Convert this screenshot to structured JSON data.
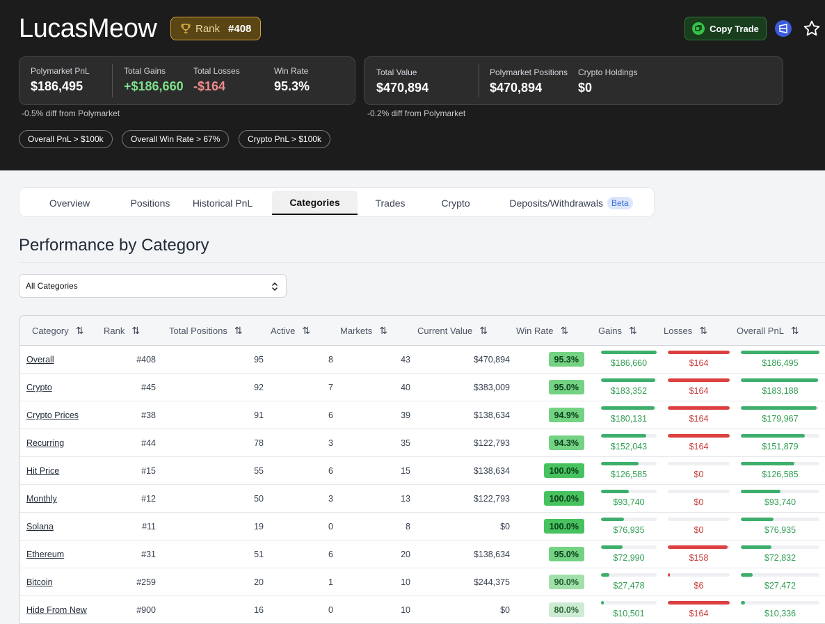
{
  "profile": {
    "username": "LucasMeow",
    "rank_label": "Rank",
    "rank_value": "#408",
    "copy_trade_label": "Copy Trade"
  },
  "card1": {
    "stats": [
      {
        "label": "Polymarket PnL",
        "value": "$186,495"
      },
      {
        "label": "Total Gains",
        "value": "+$186,660"
      },
      {
        "label": "Total Losses",
        "value": "-$164"
      },
      {
        "label": "Win Rate",
        "value": "95.3%"
      }
    ],
    "diff": "-0.5% diff from Polymarket"
  },
  "card2": {
    "stats": [
      {
        "label": "Total Value",
        "value": "$470,894"
      },
      {
        "label": "Polymarket Positions",
        "value": "$470,894"
      },
      {
        "label": "Crypto Holdings",
        "value": "$0"
      }
    ],
    "diff": "-0.2% diff from Polymarket"
  },
  "chips": [
    "Overall PnL > $100k",
    "Overall Win Rate > 67%",
    "Crypto PnL > $100k"
  ],
  "tabs": [
    {
      "label": "Overview"
    },
    {
      "label": "Positions"
    },
    {
      "label": "Historical PnL"
    },
    {
      "label": "Categories"
    },
    {
      "label": "Trades"
    },
    {
      "label": "Crypto"
    },
    {
      "label": "Deposits/Withdrawals",
      "badge": "Beta"
    }
  ],
  "section_title": "Performance by Category",
  "filter": {
    "selected": "All Categories"
  },
  "colors": {
    "gain": "#3dae6b",
    "loss": "#dc4040",
    "winrate_high": "#47c25e",
    "winrate_mid": "#74d283",
    "winrate_low": "#a2e0ab",
    "winrate_lowest": "#cdebd2"
  },
  "table": {
    "headers": [
      "Category",
      "Rank",
      "Total Positions",
      "Active",
      "Markets",
      "Current Value",
      "Win Rate",
      "Gains",
      "Losses",
      "Overall PnL"
    ],
    "rows": [
      {
        "category": "Overall",
        "rank": "#408",
        "total_positions": "95",
        "active": "8",
        "markets": "43",
        "current_value": "$470,894",
        "win_rate": "95.3%",
        "gains": "$186,660",
        "losses": "$164",
        "overall_pnl": "$186,495",
        "gains_frac": 1.0,
        "losses_frac": 1.0,
        "pnl_frac": 1.0
      },
      {
        "category": "Crypto",
        "rank": "#45",
        "total_positions": "92",
        "active": "7",
        "markets": "40",
        "current_value": "$383,009",
        "win_rate": "95.0%",
        "gains": "$183,352",
        "losses": "$164",
        "overall_pnl": "$183,188",
        "gains_frac": 0.98,
        "losses_frac": 1.0,
        "pnl_frac": 0.98
      },
      {
        "category": "Crypto Prices",
        "rank": "#38",
        "total_positions": "91",
        "active": "6",
        "markets": "39",
        "current_value": "$138,634",
        "win_rate": "94.9%",
        "gains": "$180,131",
        "losses": "$164",
        "overall_pnl": "$179,967",
        "gains_frac": 0.965,
        "losses_frac": 1.0,
        "pnl_frac": 0.965
      },
      {
        "category": "Recurring",
        "rank": "#44",
        "total_positions": "78",
        "active": "3",
        "markets": "35",
        "current_value": "$122,793",
        "win_rate": "94.3%",
        "gains": "$152,043",
        "losses": "$164",
        "overall_pnl": "$151,879",
        "gains_frac": 0.815,
        "losses_frac": 1.0,
        "pnl_frac": 0.814
      },
      {
        "category": "Hit Price",
        "rank": "#15",
        "total_positions": "55",
        "active": "6",
        "markets": "15",
        "current_value": "$138,634",
        "win_rate": "100.0%",
        "gains": "$126,585",
        "losses": "$0",
        "overall_pnl": "$126,585",
        "gains_frac": 0.678,
        "losses_frac": 0.0,
        "pnl_frac": 0.679
      },
      {
        "category": "Monthly",
        "rank": "#12",
        "total_positions": "50",
        "active": "3",
        "markets": "13",
        "current_value": "$122,793",
        "win_rate": "100.0%",
        "gains": "$93,740",
        "losses": "$0",
        "overall_pnl": "$93,740",
        "gains_frac": 0.502,
        "losses_frac": 0.0,
        "pnl_frac": 0.503
      },
      {
        "category": "Solana",
        "rank": "#11",
        "total_positions": "19",
        "active": "0",
        "markets": "8",
        "current_value": "$0",
        "win_rate": "100.0%",
        "gains": "$76,935",
        "losses": "$0",
        "overall_pnl": "$76,935",
        "gains_frac": 0.412,
        "losses_frac": 0.0,
        "pnl_frac": 0.413
      },
      {
        "category": "Ethereum",
        "rank": "#31",
        "total_positions": "51",
        "active": "6",
        "markets": "20",
        "current_value": "$138,634",
        "win_rate": "95.0%",
        "gains": "$72,990",
        "losses": "$158",
        "overall_pnl": "$72,832",
        "gains_frac": 0.391,
        "losses_frac": 0.963,
        "pnl_frac": 0.391
      },
      {
        "category": "Bitcoin",
        "rank": "#259",
        "total_positions": "20",
        "active": "1",
        "markets": "10",
        "current_value": "$244,375",
        "win_rate": "90.0%",
        "gains": "$27,478",
        "losses": "$6",
        "overall_pnl": "$27,472",
        "gains_frac": 0.147,
        "losses_frac": 0.037,
        "pnl_frac": 0.147
      },
      {
        "category": "Hide From New",
        "rank": "#900",
        "total_positions": "16",
        "active": "0",
        "markets": "10",
        "current_value": "$0",
        "win_rate": "80.0%",
        "gains": "$10,501",
        "losses": "$164",
        "overall_pnl": "$10,336",
        "gains_frac": 0.056,
        "losses_frac": 1.0,
        "pnl_frac": 0.055
      }
    ]
  }
}
